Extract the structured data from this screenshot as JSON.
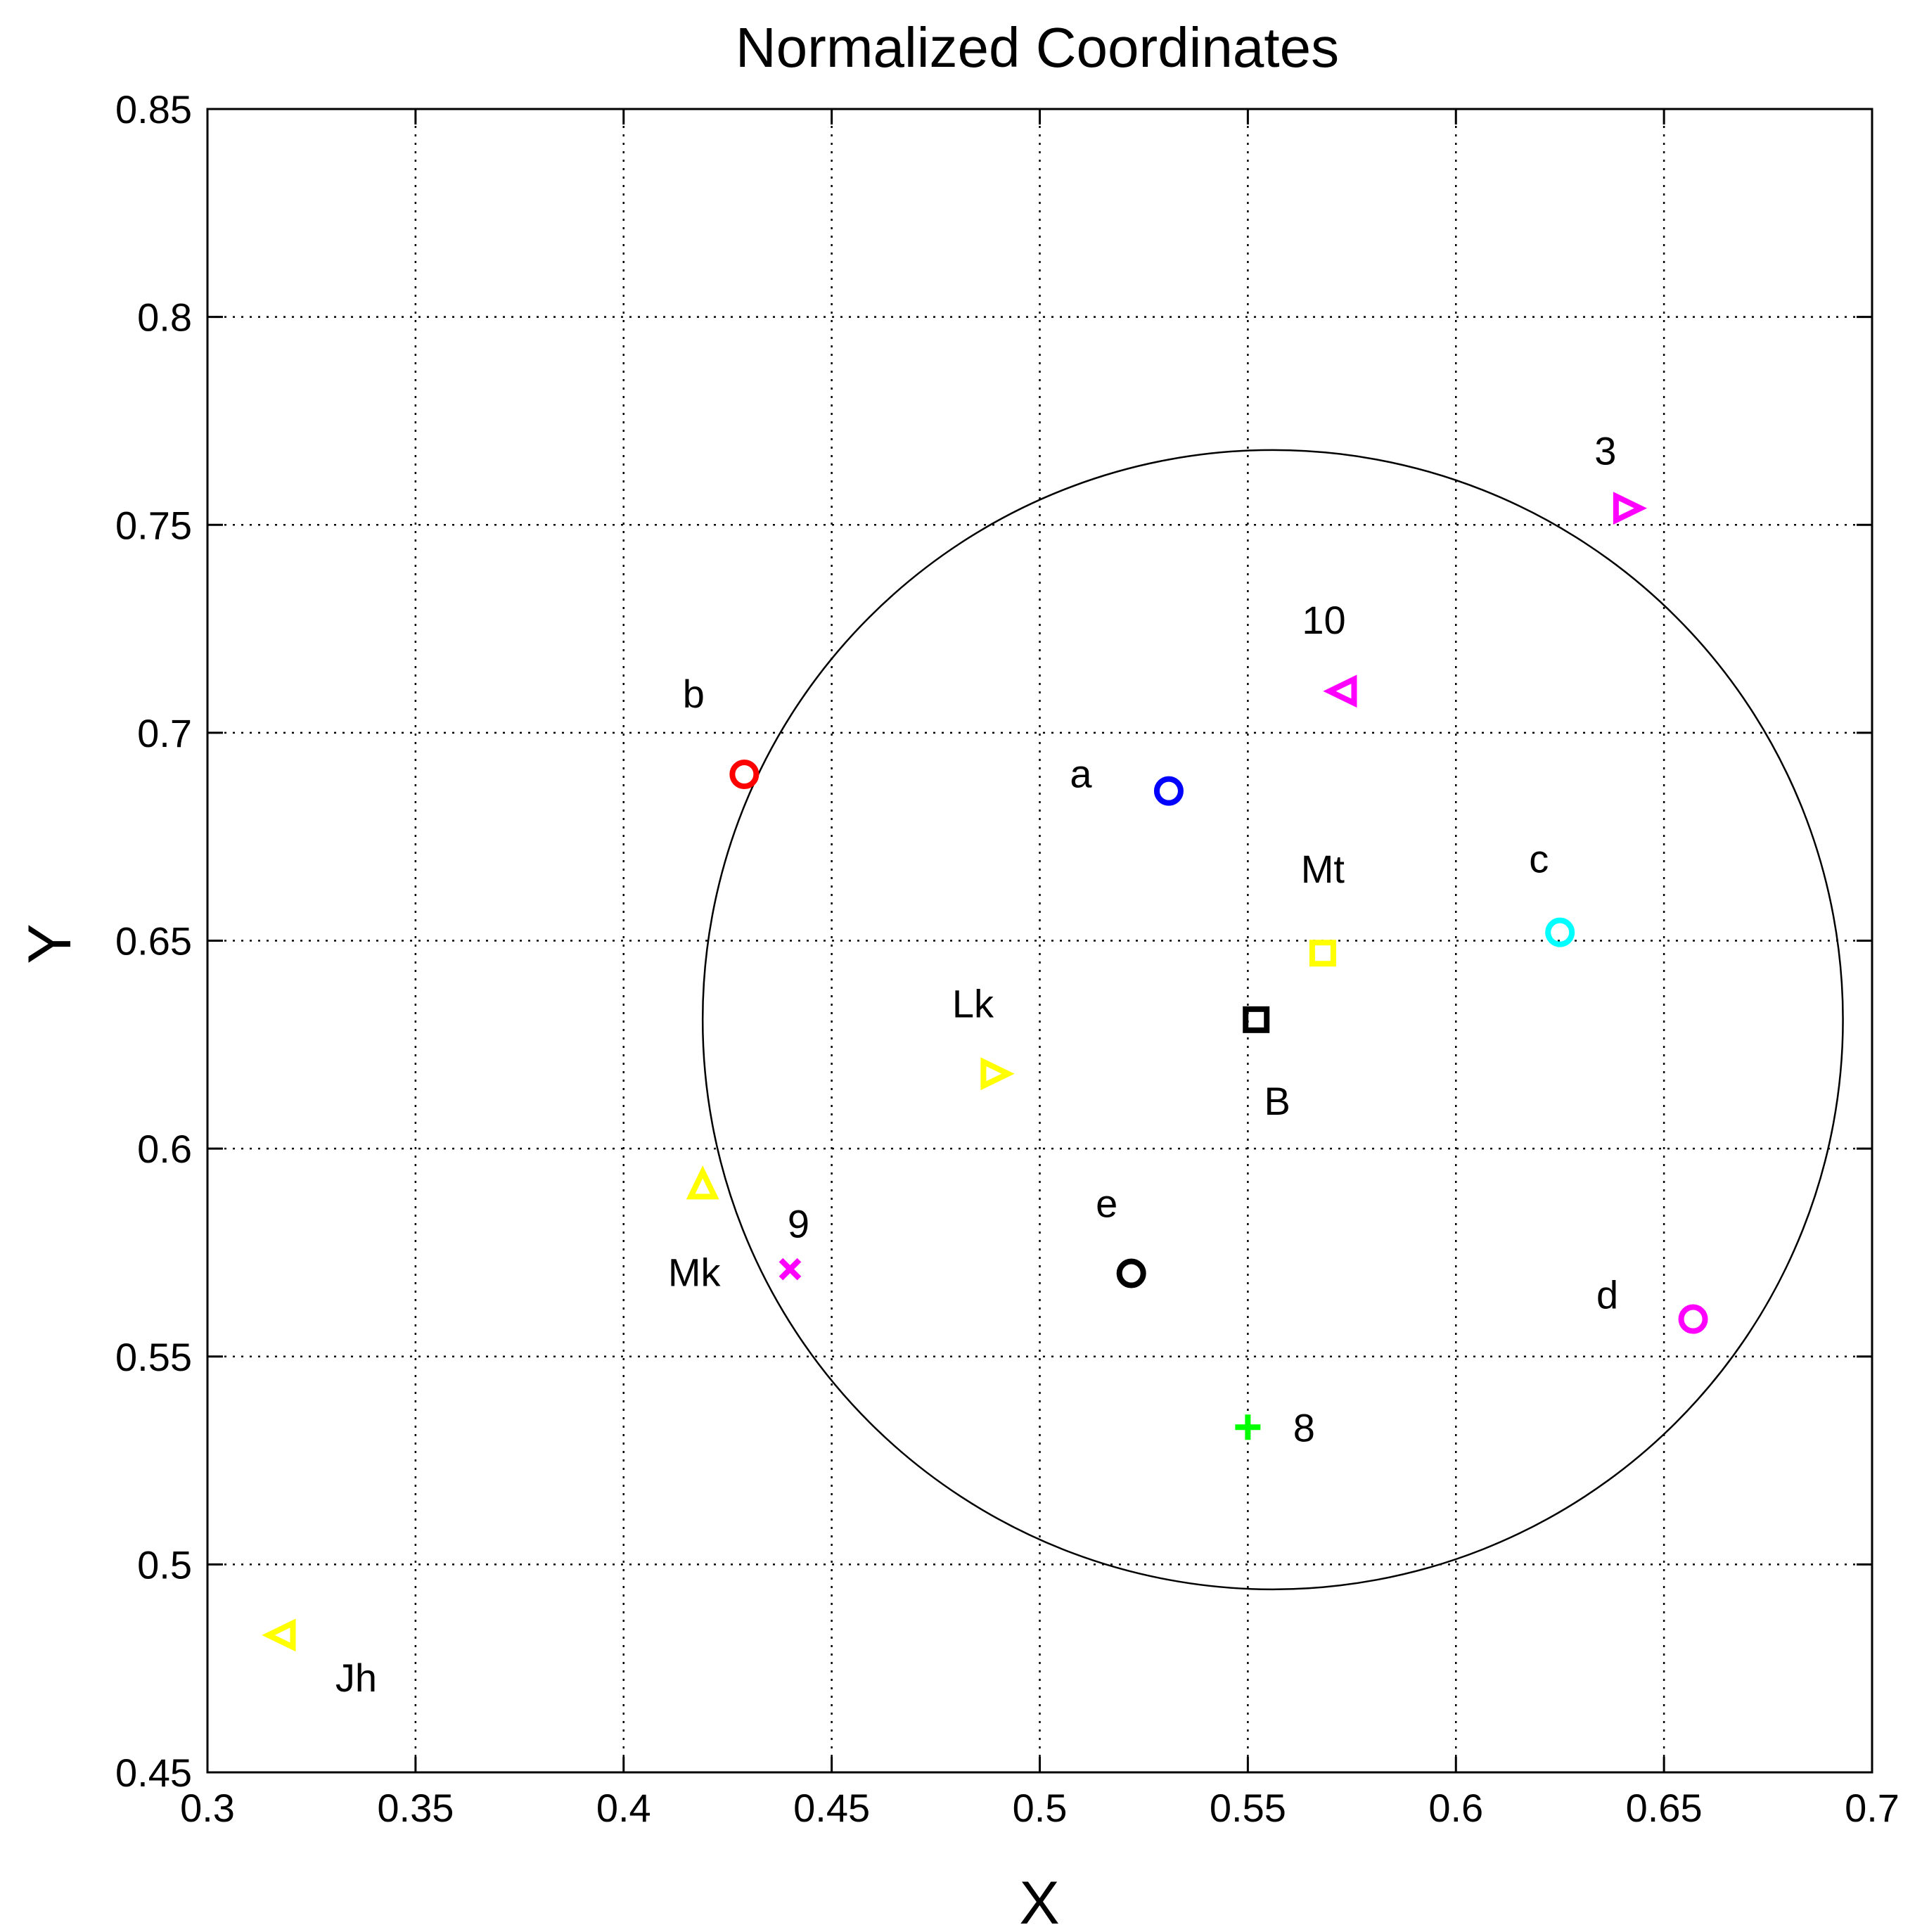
{
  "chart_data": {
    "type": "scatter",
    "title": "Normalized Coordinates",
    "xlabel": "X",
    "ylabel": "Y",
    "xlim": [
      0.3,
      0.7
    ],
    "ylim": [
      0.45,
      0.85
    ],
    "grid": true,
    "x_ticks": [
      "0.3",
      "0.35",
      "0.4",
      "0.45",
      "0.5",
      "0.55",
      "0.6",
      "0.65",
      "0.7"
    ],
    "y_ticks": [
      "0.45",
      "0.5",
      "0.55",
      "0.6",
      "0.65",
      "0.7",
      "0.75",
      "0.8",
      "0.85"
    ],
    "circle": {
      "center_x": 0.556,
      "center_y": 0.631,
      "radius": 0.137
    },
    "points": [
      {
        "name": "b",
        "label": "b",
        "x": 0.429,
        "y": 0.69,
        "marker": "circle",
        "color": "#ff0000"
      },
      {
        "name": "a",
        "label": "a",
        "x": 0.531,
        "y": 0.686,
        "marker": "circle",
        "color": "#0000ff"
      },
      {
        "name": "c",
        "label": "c",
        "x": 0.625,
        "y": 0.652,
        "marker": "circle",
        "color": "#00ffff"
      },
      {
        "name": "d",
        "label": "d",
        "x": 0.657,
        "y": 0.559,
        "marker": "circle",
        "color": "#ff00ff"
      },
      {
        "name": "e",
        "label": "e",
        "x": 0.522,
        "y": 0.57,
        "marker": "circle",
        "color": "#000000"
      },
      {
        "name": "3",
        "label": "3",
        "x": 0.641,
        "y": 0.754,
        "marker": "triangle-right",
        "color": "#ff00ff"
      },
      {
        "name": "10",
        "label": "10",
        "x": 0.573,
        "y": 0.71,
        "marker": "triangle-left",
        "color": "#ff00ff"
      },
      {
        "name": "Mt",
        "label": "Mt",
        "x": 0.568,
        "y": 0.647,
        "marker": "square",
        "color": "#ffff00"
      },
      {
        "name": "B",
        "label": "B",
        "x": 0.552,
        "y": 0.631,
        "marker": "square",
        "color": "#000000"
      },
      {
        "name": "Lk",
        "label": "Lk",
        "x": 0.489,
        "y": 0.618,
        "marker": "triangle-right",
        "color": "#ffff00"
      },
      {
        "name": "Mk",
        "label": "Mk",
        "x": 0.419,
        "y": 0.591,
        "marker": "triangle-up",
        "color": "#ffff00"
      },
      {
        "name": "9",
        "label": "9",
        "x": 0.44,
        "y": 0.571,
        "marker": "x",
        "color": "#ff00ff"
      },
      {
        "name": "8",
        "label": "8",
        "x": 0.55,
        "y": 0.533,
        "marker": "plus",
        "color": "#00ff00"
      },
      {
        "name": "Jh",
        "label": "Jh",
        "x": 0.318,
        "y": 0.483,
        "marker": "triangle-left",
        "color": "#ffff00"
      }
    ]
  }
}
